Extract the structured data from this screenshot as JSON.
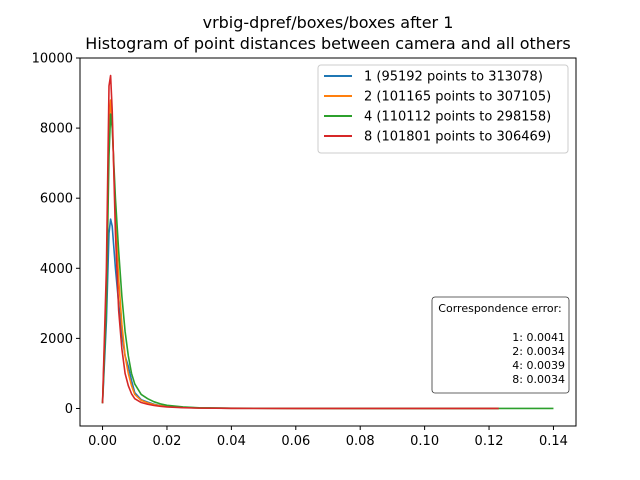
{
  "chart_data": {
    "type": "line",
    "title": "vrbig-dpref/boxes/boxes after 1",
    "subtitle": "Histogram of point distances between camera and all others",
    "xlabel": "",
    "ylabel": "",
    "xlim": [
      -0.007,
      0.147
    ],
    "ylim": [
      -500,
      10000
    ],
    "xticks": [
      0.0,
      0.02,
      0.04,
      0.06,
      0.08,
      0.1,
      0.12,
      0.14
    ],
    "xtick_labels": [
      "0.00",
      "0.02",
      "0.04",
      "0.06",
      "0.08",
      "0.10",
      "0.12",
      "0.14"
    ],
    "yticks": [
      0,
      2000,
      4000,
      6000,
      8000,
      10000
    ],
    "ytick_labels": [
      "0",
      "2000",
      "4000",
      "6000",
      "8000",
      "10000"
    ],
    "grid": false,
    "legend_position": "top-right",
    "series": [
      {
        "name": "1 (95192 points to 313078)",
        "color": "#1f77b4",
        "x": [
          0.0,
          0.0012,
          0.002,
          0.0025,
          0.003,
          0.004,
          0.005,
          0.006,
          0.007,
          0.008,
          0.009,
          0.01,
          0.012,
          0.014,
          0.016,
          0.018,
          0.02,
          0.025,
          0.03,
          0.04,
          0.06,
          0.08,
          0.1,
          0.123
        ],
        "y": [
          150,
          2500,
          5000,
          5400,
          5200,
          4000,
          3000,
          2100,
          1500,
          1200,
          800,
          450,
          250,
          180,
          120,
          80,
          60,
          30,
          15,
          5,
          2,
          1,
          1,
          0
        ]
      },
      {
        "name": "2 (101165 points to 307105)",
        "color": "#ff7f0e",
        "x": [
          0.0,
          0.0012,
          0.002,
          0.0025,
          0.003,
          0.004,
          0.005,
          0.006,
          0.007,
          0.008,
          0.009,
          0.01,
          0.012,
          0.014,
          0.016,
          0.018,
          0.02,
          0.025,
          0.03,
          0.04,
          0.06,
          0.08,
          0.1,
          0.123
        ],
        "y": [
          150,
          3500,
          8000,
          8800,
          8200,
          5500,
          3700,
          2400,
          1500,
          1000,
          650,
          400,
          230,
          160,
          110,
          75,
          55,
          28,
          14,
          5,
          2,
          1,
          1,
          0
        ]
      },
      {
        "name": "4 (110112 points to 298158)",
        "color": "#2ca02c",
        "x": [
          0.0,
          0.0012,
          0.002,
          0.0025,
          0.003,
          0.004,
          0.005,
          0.006,
          0.007,
          0.008,
          0.009,
          0.01,
          0.012,
          0.014,
          0.016,
          0.018,
          0.02,
          0.025,
          0.03,
          0.04,
          0.06,
          0.08,
          0.1,
          0.12,
          0.14
        ],
        "y": [
          150,
          3000,
          7200,
          8400,
          8000,
          6000,
          4500,
          3200,
          2200,
          1500,
          1000,
          700,
          400,
          280,
          190,
          130,
          90,
          45,
          20,
          8,
          3,
          2,
          1,
          1,
          0
        ]
      },
      {
        "name": "8 (101801 points to 306469)",
        "color": "#d62728",
        "x": [
          0.0,
          0.0012,
          0.002,
          0.0025,
          0.003,
          0.004,
          0.005,
          0.006,
          0.007,
          0.008,
          0.009,
          0.01,
          0.012,
          0.014,
          0.016,
          0.018,
          0.02,
          0.025,
          0.03,
          0.04,
          0.06,
          0.08,
          0.1,
          0.123
        ],
        "y": [
          150,
          4000,
          9200,
          9500,
          8500,
          5000,
          2800,
          1700,
          1000,
          650,
          420,
          280,
          170,
          120,
          85,
          60,
          45,
          22,
          10,
          4,
          2,
          1,
          1,
          0
        ]
      }
    ],
    "annotation": {
      "heading": "Correspondence error:",
      "lines": [
        "1: 0.0041",
        "2: 0.0034",
        "4: 0.0039",
        "8: 0.0034"
      ]
    }
  }
}
